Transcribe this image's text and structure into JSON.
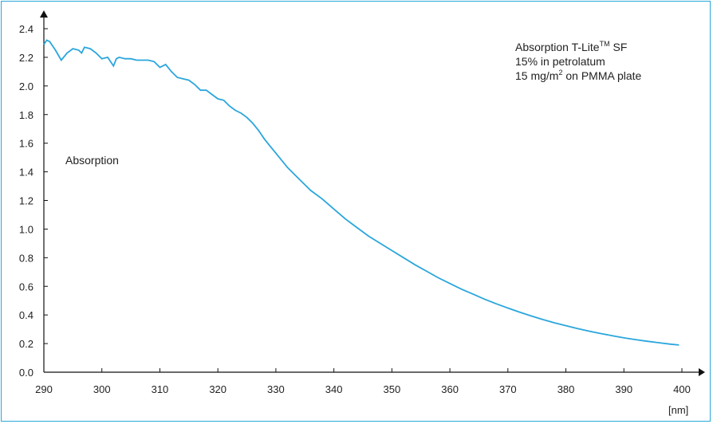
{
  "chart_data": {
    "type": "line",
    "title": "",
    "xlabel": "",
    "ylabel": "",
    "x_unit_label": "[nm]",
    "y_series_label": "Absorption",
    "legend_lines": [
      "Absorption T-Lite",
      "TM",
      " SF",
      "15% in petrolatum",
      "15 mg/m",
      "2",
      " on PMMA plate"
    ],
    "xlim": [
      290,
      400
    ],
    "ylim": [
      0,
      2.4
    ],
    "x_ticks": [
      290,
      300,
      310,
      320,
      330,
      340,
      350,
      360,
      370,
      380,
      390,
      400
    ],
    "x_tick_labels": [
      "290",
      "300",
      "310",
      "320",
      "330",
      "340",
      "350",
      "360",
      "370",
      "380",
      "390",
      "400"
    ],
    "y_ticks": [
      0,
      0.2,
      0.4,
      0.6,
      0.8,
      1.0,
      1.2,
      1.4,
      1.6,
      1.8,
      2.0,
      2.2,
      2.4
    ],
    "y_tick_labels": [
      "0.0",
      "0.2",
      "0.4",
      "0.6",
      "0.8",
      "1.0",
      "1.2",
      "1.4",
      "1.6",
      "1.8",
      "2.0",
      "2.2",
      "2.4"
    ],
    "grid": false,
    "line_color": "#2aa6dc",
    "series": [
      {
        "x": [
          290,
          290.5,
          291,
          292,
          293,
          294,
          295,
          296,
          296.5,
          297,
          298,
          299,
          300,
          301,
          301.5,
          302,
          302.5,
          303,
          304,
          305,
          306,
          307,
          308,
          309,
          309.5,
          310,
          311,
          312,
          313,
          314,
          315,
          316,
          317,
          318,
          319,
          320,
          321,
          322,
          323,
          324,
          325,
          326,
          327,
          328,
          329,
          330,
          332,
          334,
          336,
          338,
          340,
          342,
          344,
          346,
          348,
          350,
          352,
          354,
          356,
          358,
          360,
          362,
          364,
          366,
          368,
          370,
          372,
          374,
          376,
          378,
          380,
          382,
          384,
          386,
          388,
          390,
          392,
          394,
          396,
          398,
          399.5
        ],
        "y": [
          2.29,
          2.32,
          2.31,
          2.25,
          2.18,
          2.23,
          2.26,
          2.25,
          2.23,
          2.27,
          2.26,
          2.23,
          2.19,
          2.2,
          2.17,
          2.14,
          2.19,
          2.2,
          2.19,
          2.19,
          2.18,
          2.18,
          2.18,
          2.17,
          2.15,
          2.13,
          2.15,
          2.1,
          2.06,
          2.05,
          2.04,
          2.01,
          1.97,
          1.97,
          1.94,
          1.91,
          1.9,
          1.86,
          1.83,
          1.81,
          1.78,
          1.74,
          1.69,
          1.63,
          1.58,
          1.53,
          1.43,
          1.35,
          1.27,
          1.21,
          1.14,
          1.07,
          1.01,
          0.95,
          0.9,
          0.85,
          0.8,
          0.75,
          0.705,
          0.66,
          0.62,
          0.58,
          0.545,
          0.51,
          0.478,
          0.448,
          0.42,
          0.393,
          0.368,
          0.345,
          0.325,
          0.305,
          0.287,
          0.27,
          0.255,
          0.24,
          0.228,
          0.216,
          0.206,
          0.196,
          0.19
        ]
      }
    ]
  }
}
